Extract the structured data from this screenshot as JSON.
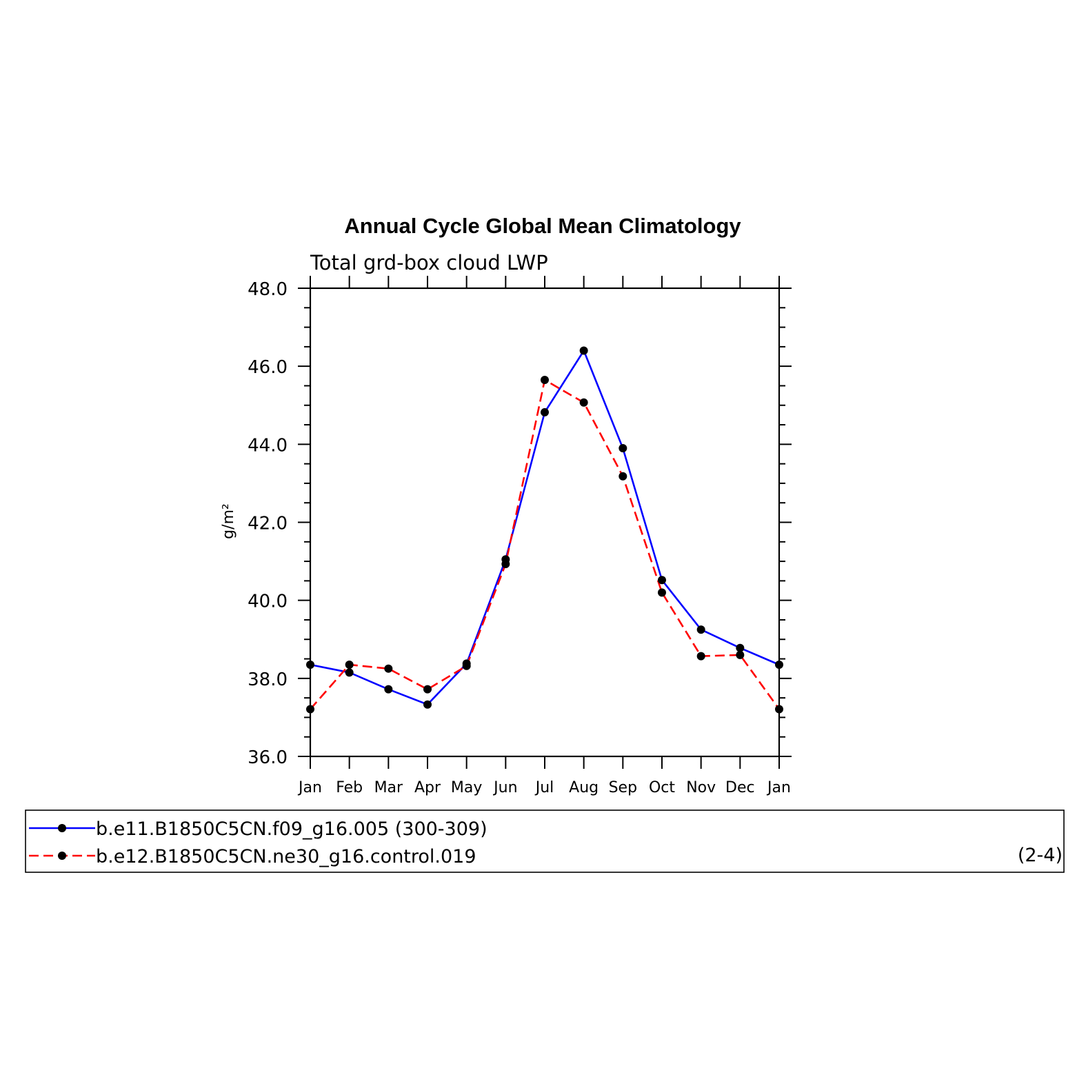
{
  "chart_data": {
    "type": "line",
    "title": "Annual Cycle Global Mean Climatology",
    "subtitle": "Total grd-box cloud LWP",
    "ylabel": "g/m²",
    "xlabel": "",
    "ylim": [
      36.0,
      48.0
    ],
    "yticks": [
      "36.0",
      "38.0",
      "40.0",
      "42.0",
      "44.0",
      "46.0",
      "48.0"
    ],
    "categories": [
      "Jan",
      "Feb",
      "Mar",
      "Apr",
      "May",
      "Jun",
      "Jul",
      "Aug",
      "Sep",
      "Oct",
      "Nov",
      "Dec",
      "Jan"
    ],
    "grid": false,
    "legend_position": "bottom",
    "series": [
      {
        "name": "b.e11.B1850C5CN.f09_g16.005 (300-309)",
        "color": "#0000ff",
        "style": "solid",
        "values": [
          38.35,
          38.15,
          37.72,
          37.33,
          38.38,
          41.05,
          44.82,
          46.4,
          43.9,
          40.52,
          39.25,
          38.78,
          38.35
        ]
      },
      {
        "name": "b.e12.B1850C5CN.ne30_g16.control.019",
        "color": "#ff0000",
        "style": "dashed",
        "values": [
          37.21,
          38.35,
          38.25,
          37.72,
          38.32,
          40.93,
          45.65,
          45.07,
          43.18,
          40.2,
          38.57,
          38.6,
          37.21
        ]
      }
    ],
    "legend_note": "(2-4)"
  }
}
